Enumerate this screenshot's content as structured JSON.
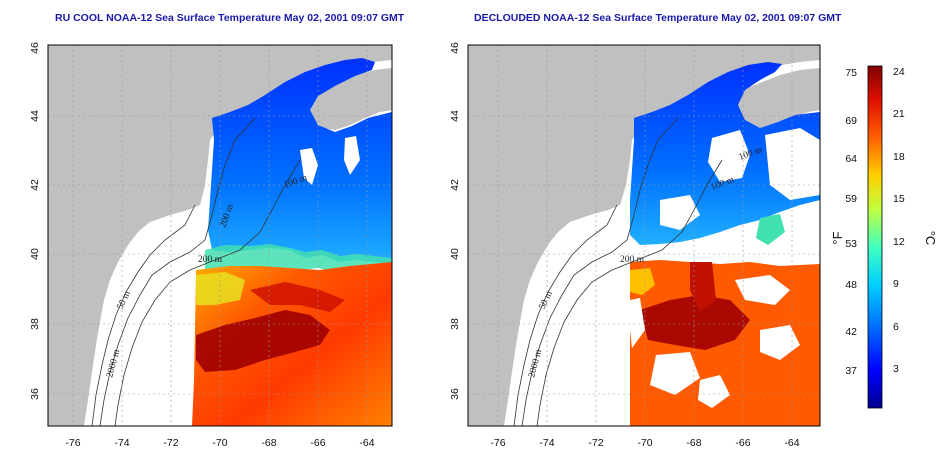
{
  "titles": {
    "left": "RU COOL NOAA-12 Sea Surface Temperature May 02, 2001 09:07 GMT",
    "right": "DECLOUDED NOAA-12 Sea Surface Temperature May 02, 2001 09:07 GMT"
  },
  "map_axes": {
    "longitude": {
      "min": -77,
      "max": -63,
      "ticks": [
        -76,
        -74,
        -72,
        -70,
        -68,
        -66,
        -64
      ],
      "tick_labels": [
        "-76",
        "-74",
        "-72",
        "-70",
        "-68",
        "-66",
        "-64"
      ]
    },
    "latitude": {
      "min": 35,
      "max": 46,
      "ticks": [
        36,
        38,
        40,
        42,
        44,
        46
      ],
      "tick_labels": [
        "36",
        "38",
        "40",
        "42",
        "44",
        "46"
      ]
    },
    "grid": true
  },
  "contour_labels": {
    "left": [
      "200 m",
      "200 m",
      "100 m",
      "50 m",
      "2000 m"
    ],
    "right": [
      "200 m",
      "100 m",
      "100 m",
      "50 m",
      "2000 m"
    ]
  },
  "colorbar": {
    "fahrenheit_labels": [
      "75",
      "69",
      "64",
      "59",
      "53",
      "48",
      "42",
      "37"
    ],
    "celsius_labels": [
      "24",
      "21",
      "18",
      "15",
      "12",
      "9",
      "6",
      "3"
    ],
    "fahrenheit_unit": "°F",
    "celsius_unit": "°C",
    "colors": [
      "#00008f",
      "#0000ff",
      "#0070ff",
      "#00d0ff",
      "#40ffc0",
      "#c0ff40",
      "#ffd000",
      "#ff6000",
      "#e01000",
      "#800000"
    ]
  },
  "colors": {
    "land": "#c0c0c0",
    "cloud": "#ffffff",
    "title": "#1a1aa8"
  }
}
